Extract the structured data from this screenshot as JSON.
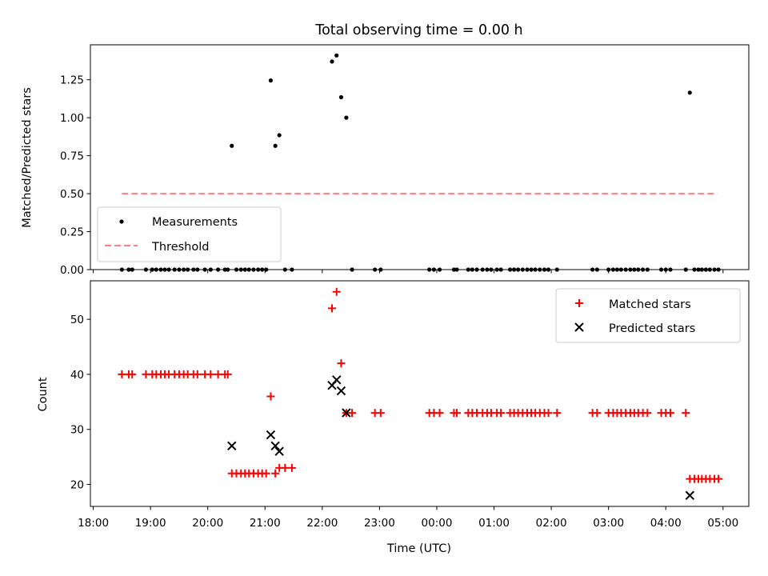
{
  "chart_data": [
    {
      "type": "scatter",
      "title": "Total observing time = 0.00 h",
      "ylabel": "Matched/Predicted stars",
      "ylim": [
        0,
        1.48
      ],
      "yticks": [
        0.0,
        0.25,
        0.5,
        0.75,
        1.0,
        1.25
      ],
      "ytick_labels": [
        "0.00",
        "0.25",
        "0.50",
        "0.75",
        "1.00",
        "1.25"
      ],
      "xlim": [
        -0.05,
        11.45
      ],
      "legend": {
        "position": "lower-left",
        "entries": [
          {
            "label": "Measurements"
          },
          {
            "label": "Threshold"
          }
        ]
      },
      "threshold": {
        "name": "Threshold",
        "value": 0.5,
        "x_range": [
          0.5,
          10.9
        ],
        "color": "#ff7f7f"
      },
      "series": [
        {
          "name": "Measurements",
          "color": "#000000",
          "points": [
            [
              0.5,
              0
            ],
            [
              0.62,
              0
            ],
            [
              0.68,
              0
            ],
            [
              0.92,
              0
            ],
            [
              1.03,
              0
            ],
            [
              1.1,
              0
            ],
            [
              1.18,
              0
            ],
            [
              1.25,
              0
            ],
            [
              1.32,
              0
            ],
            [
              1.42,
              0
            ],
            [
              1.5,
              0
            ],
            [
              1.58,
              0
            ],
            [
              1.65,
              0
            ],
            [
              1.75,
              0
            ],
            [
              1.82,
              0
            ],
            [
              1.95,
              0
            ],
            [
              2.05,
              0
            ],
            [
              2.18,
              0
            ],
            [
              2.3,
              0
            ],
            [
              2.35,
              0
            ],
            [
              2.42,
              0.815
            ],
            [
              2.5,
              0
            ],
            [
              2.58,
              0
            ],
            [
              2.65,
              0
            ],
            [
              2.72,
              0
            ],
            [
              2.8,
              0
            ],
            [
              2.88,
              0
            ],
            [
              2.95,
              0
            ],
            [
              3.02,
              0
            ],
            [
              3.1,
              1.245
            ],
            [
              3.18,
              0.815
            ],
            [
              3.25,
              0.885
            ],
            [
              3.35,
              0
            ],
            [
              3.47,
              0
            ],
            [
              4.17,
              1.37
            ],
            [
              4.25,
              1.41
            ],
            [
              4.33,
              1.135
            ],
            [
              4.42,
              1.0
            ],
            [
              4.52,
              0
            ],
            [
              4.92,
              0
            ],
            [
              5.02,
              0
            ],
            [
              5.87,
              0
            ],
            [
              5.95,
              0
            ],
            [
              6.05,
              0
            ],
            [
              6.3,
              0
            ],
            [
              6.35,
              0
            ],
            [
              6.55,
              0
            ],
            [
              6.62,
              0
            ],
            [
              6.7,
              0
            ],
            [
              6.8,
              0
            ],
            [
              6.88,
              0
            ],
            [
              6.95,
              0
            ],
            [
              7.05,
              0
            ],
            [
              7.12,
              0
            ],
            [
              7.28,
              0
            ],
            [
              7.35,
              0
            ],
            [
              7.42,
              0
            ],
            [
              7.5,
              0
            ],
            [
              7.58,
              0
            ],
            [
              7.65,
              0
            ],
            [
              7.72,
              0
            ],
            [
              7.8,
              0
            ],
            [
              7.88,
              0
            ],
            [
              7.95,
              0
            ],
            [
              8.1,
              0
            ],
            [
              8.72,
              0
            ],
            [
              8.8,
              0
            ],
            [
              9.0,
              0
            ],
            [
              9.08,
              0
            ],
            [
              9.15,
              0
            ],
            [
              9.22,
              0
            ],
            [
              9.3,
              0
            ],
            [
              9.38,
              0
            ],
            [
              9.45,
              0
            ],
            [
              9.52,
              0
            ],
            [
              9.6,
              0
            ],
            [
              9.68,
              0
            ],
            [
              9.92,
              0
            ],
            [
              10.0,
              0
            ],
            [
              10.08,
              0
            ],
            [
              10.35,
              0
            ],
            [
              10.42,
              1.165
            ],
            [
              10.5,
              0
            ],
            [
              10.57,
              0
            ],
            [
              10.63,
              0
            ],
            [
              10.7,
              0
            ],
            [
              10.77,
              0
            ],
            [
              10.85,
              0
            ],
            [
              10.92,
              0
            ]
          ]
        }
      ]
    },
    {
      "type": "scatter",
      "xlabel": "Time (UTC)",
      "ylabel": "Count",
      "ylim": [
        16,
        57
      ],
      "yticks": [
        20,
        30,
        40,
        50
      ],
      "ytick_labels": [
        "20",
        "30",
        "40",
        "50"
      ],
      "xlim": [
        -0.05,
        11.45
      ],
      "xticks": [
        0,
        1,
        2,
        3,
        4,
        5,
        6,
        7,
        8,
        9,
        10,
        11
      ],
      "xtick_labels": [
        "18:00",
        "19:00",
        "20:00",
        "21:00",
        "22:00",
        "23:00",
        "00:00",
        "01:00",
        "02:00",
        "03:00",
        "04:00",
        "05:00"
      ],
      "legend": {
        "position": "top-right",
        "entries": [
          {
            "label": "Matched stars"
          },
          {
            "label": "Predicted stars"
          }
        ]
      },
      "series": [
        {
          "name": "Matched stars",
          "marker": "plus",
          "color": "#ff0000",
          "points": [
            [
              0.5,
              40
            ],
            [
              0.62,
              40
            ],
            [
              0.68,
              40
            ],
            [
              0.92,
              40
            ],
            [
              1.03,
              40
            ],
            [
              1.1,
              40
            ],
            [
              1.18,
              40
            ],
            [
              1.25,
              40
            ],
            [
              1.32,
              40
            ],
            [
              1.42,
              40
            ],
            [
              1.5,
              40
            ],
            [
              1.58,
              40
            ],
            [
              1.65,
              40
            ],
            [
              1.75,
              40
            ],
            [
              1.82,
              40
            ],
            [
              1.95,
              40
            ],
            [
              2.05,
              40
            ],
            [
              2.18,
              40
            ],
            [
              2.3,
              40
            ],
            [
              2.35,
              40
            ],
            [
              2.42,
              22
            ],
            [
              2.5,
              22
            ],
            [
              2.58,
              22
            ],
            [
              2.65,
              22
            ],
            [
              2.72,
              22
            ],
            [
              2.8,
              22
            ],
            [
              2.88,
              22
            ],
            [
              2.95,
              22
            ],
            [
              3.02,
              22
            ],
            [
              3.1,
              36
            ],
            [
              3.18,
              22
            ],
            [
              3.25,
              23
            ],
            [
              3.35,
              23
            ],
            [
              3.47,
              23
            ],
            [
              4.17,
              52
            ],
            [
              4.25,
              55
            ],
            [
              4.33,
              42
            ],
            [
              4.42,
              33
            ],
            [
              4.52,
              33
            ],
            [
              4.92,
              33
            ],
            [
              5.02,
              33
            ],
            [
              5.87,
              33
            ],
            [
              5.95,
              33
            ],
            [
              6.05,
              33
            ],
            [
              6.3,
              33
            ],
            [
              6.35,
              33
            ],
            [
              6.55,
              33
            ],
            [
              6.62,
              33
            ],
            [
              6.7,
              33
            ],
            [
              6.8,
              33
            ],
            [
              6.88,
              33
            ],
            [
              6.95,
              33
            ],
            [
              7.05,
              33
            ],
            [
              7.12,
              33
            ],
            [
              7.28,
              33
            ],
            [
              7.35,
              33
            ],
            [
              7.42,
              33
            ],
            [
              7.5,
              33
            ],
            [
              7.58,
              33
            ],
            [
              7.65,
              33
            ],
            [
              7.72,
              33
            ],
            [
              7.8,
              33
            ],
            [
              7.88,
              33
            ],
            [
              7.95,
              33
            ],
            [
              8.1,
              33
            ],
            [
              8.72,
              33
            ],
            [
              8.8,
              33
            ],
            [
              9.0,
              33
            ],
            [
              9.08,
              33
            ],
            [
              9.15,
              33
            ],
            [
              9.22,
              33
            ],
            [
              9.3,
              33
            ],
            [
              9.38,
              33
            ],
            [
              9.45,
              33
            ],
            [
              9.52,
              33
            ],
            [
              9.6,
              33
            ],
            [
              9.68,
              33
            ],
            [
              9.92,
              33
            ],
            [
              10.0,
              33
            ],
            [
              10.08,
              33
            ],
            [
              10.35,
              33
            ],
            [
              10.42,
              21
            ],
            [
              10.5,
              21
            ],
            [
              10.57,
              21
            ],
            [
              10.63,
              21
            ],
            [
              10.7,
              21
            ],
            [
              10.77,
              21
            ],
            [
              10.85,
              21
            ],
            [
              10.92,
              21
            ]
          ]
        },
        {
          "name": "Predicted stars",
          "marker": "x",
          "color": "#000000",
          "points": [
            [
              2.42,
              27
            ],
            [
              3.1,
              29
            ],
            [
              3.18,
              27
            ],
            [
              3.25,
              26
            ],
            [
              4.17,
              38
            ],
            [
              4.25,
              39
            ],
            [
              4.33,
              37
            ],
            [
              4.42,
              33
            ],
            [
              10.42,
              18
            ]
          ]
        }
      ]
    }
  ]
}
